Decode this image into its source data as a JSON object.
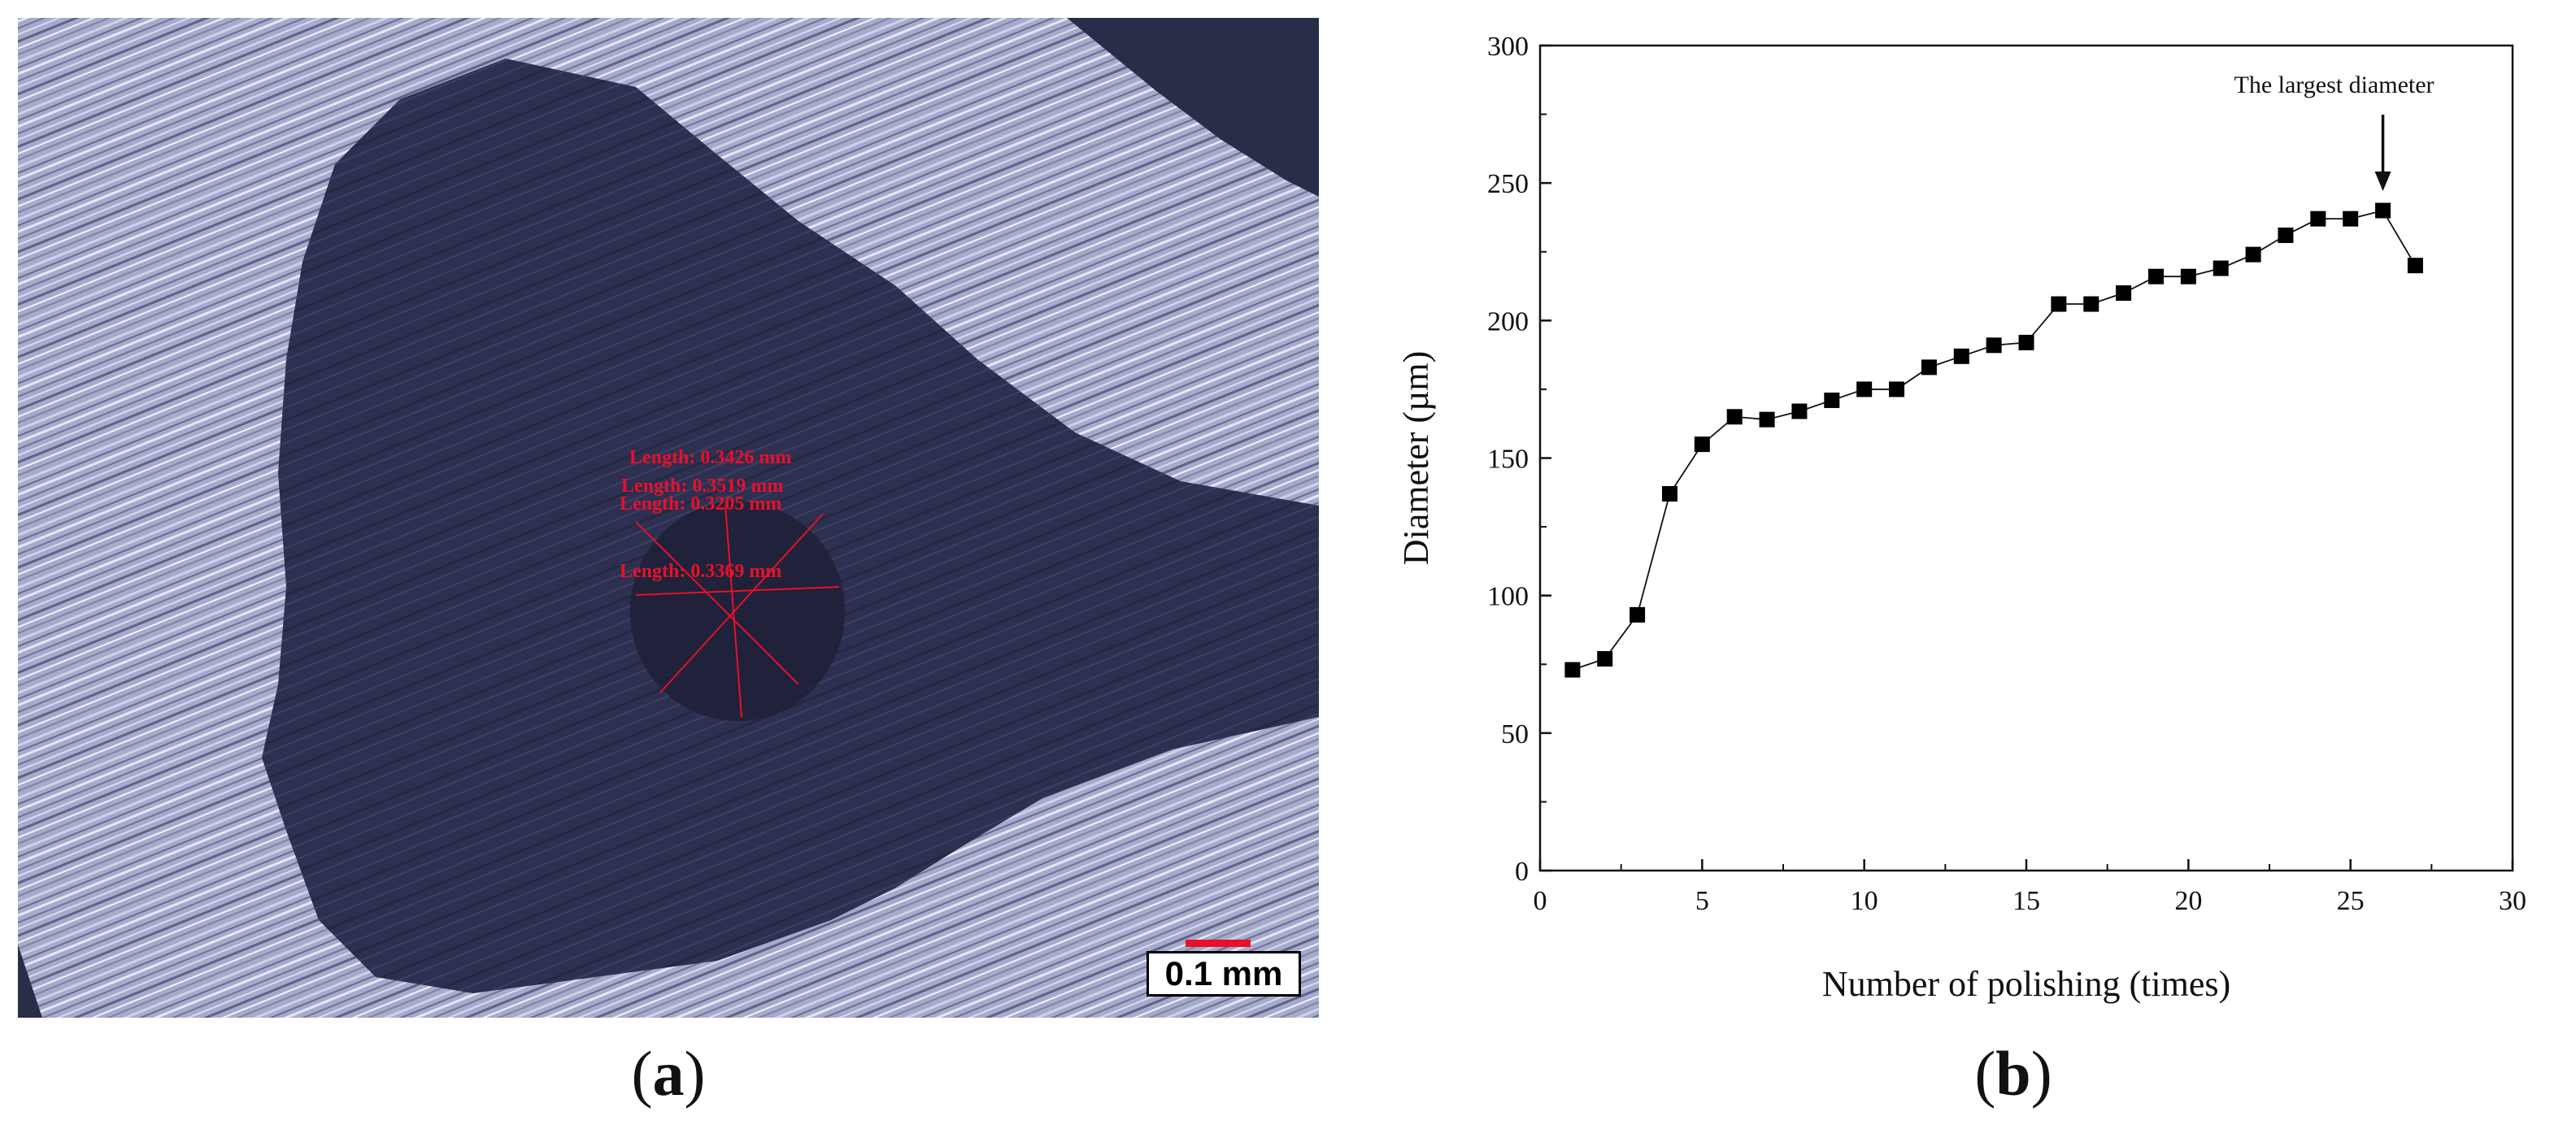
{
  "panel_a": {
    "caption_open": "(",
    "caption_letter": "a",
    "caption_close": ")",
    "scale_label": "0.1 mm",
    "measurements": [
      "Length: 0.3426 mm",
      "Length: 0.3519 mm",
      "Length: 0.3205 mm",
      "Length: 0.3369 mm"
    ],
    "colors": {
      "annotation": "#e8102a",
      "background_metal": "#9aa0c4",
      "dark_region": "#2c2f4a"
    }
  },
  "panel_b": {
    "caption_open": "(",
    "caption_letter": "b",
    "caption_close": ")"
  },
  "chart_data": {
    "type": "line",
    "xlabel": "Number of polishing (times)",
    "ylabel": "Diameter (µm)",
    "xlim": [
      0,
      30
    ],
    "ylim": [
      0,
      300
    ],
    "xticks": [
      0,
      5,
      10,
      15,
      20,
      25,
      30
    ],
    "yticks": [
      0,
      50,
      100,
      150,
      200,
      250,
      300
    ],
    "grid": false,
    "marker": "square",
    "x": [
      1,
      2,
      3,
      4,
      5,
      6,
      7,
      8,
      9,
      10,
      11,
      12,
      13,
      14,
      15,
      16,
      17,
      18,
      19,
      20,
      21,
      22,
      23,
      24,
      25,
      26,
      27
    ],
    "y": [
      73,
      77,
      93,
      137,
      155,
      165,
      164,
      167,
      171,
      175,
      175,
      183,
      187,
      191,
      192,
      206,
      206,
      210,
      216,
      216,
      219,
      224,
      231,
      237,
      237,
      240,
      220
    ],
    "annotations": [
      {
        "text": "The largest diameter",
        "x": 26,
        "y": 240
      }
    ]
  }
}
